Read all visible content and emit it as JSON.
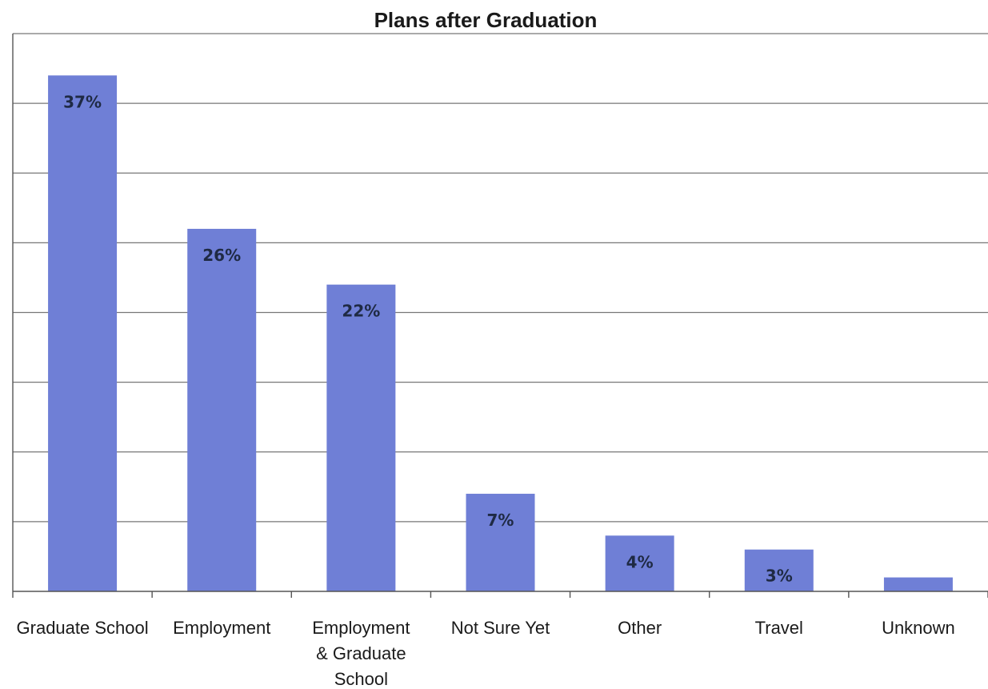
{
  "chart_data": {
    "type": "bar",
    "title": "Plans after Graduation",
    "xlabel": "",
    "ylabel": "",
    "categories": [
      [
        "Graduate School"
      ],
      [
        "Employment"
      ],
      [
        "Employment",
        "& Graduate",
        "School"
      ],
      [
        "Not Sure Yet"
      ],
      [
        "Other"
      ],
      [
        "Travel"
      ],
      [
        "Unknown"
      ]
    ],
    "values": [
      37,
      26,
      22,
      7,
      4,
      3,
      1
    ],
    "data_labels": [
      "37%",
      "26%",
      "22%",
      "7%",
      "4%",
      "3%",
      ""
    ],
    "ylim": [
      0,
      40
    ],
    "grid": true,
    "legend": "none",
    "bar_color": "#6f7fd6"
  }
}
